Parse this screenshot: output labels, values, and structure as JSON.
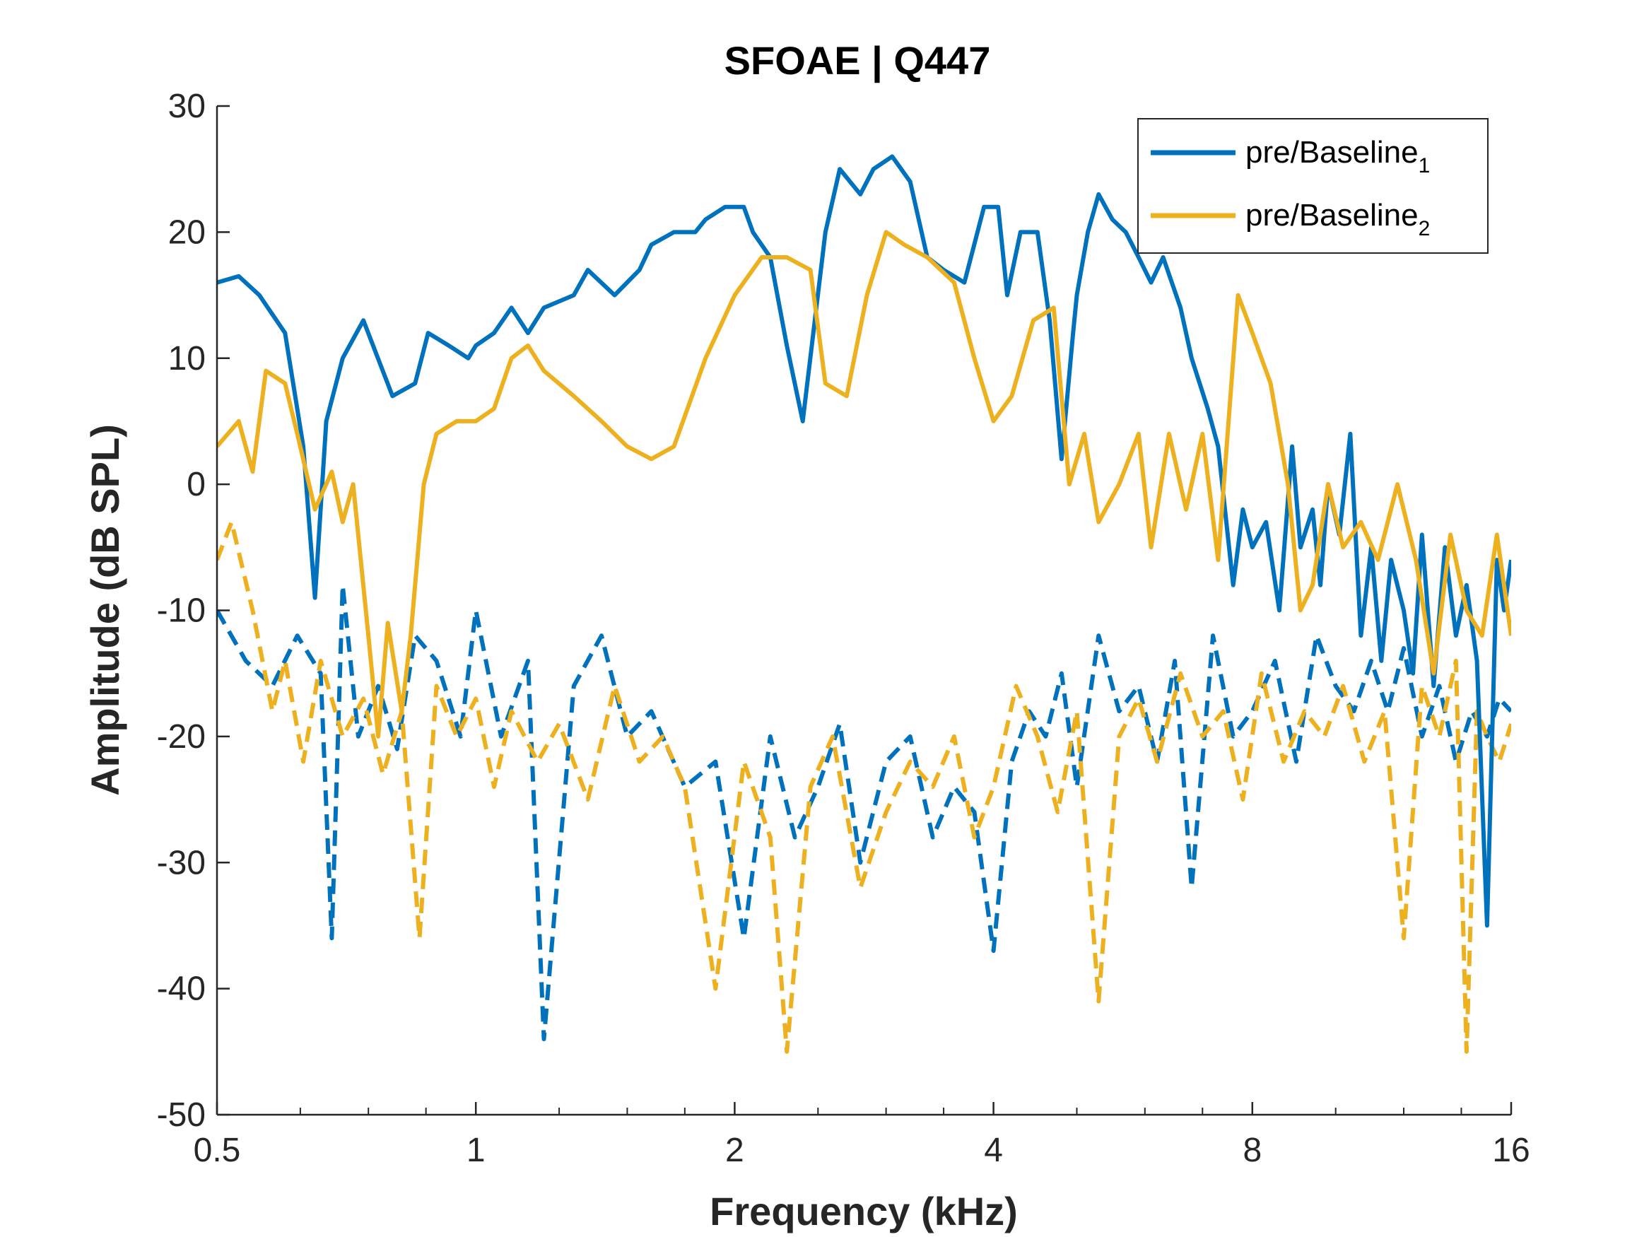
{
  "chart_data": {
    "type": "line",
    "title": "SFOAE | Q447",
    "xlabel": "Frequency (kHz)",
    "ylabel": "Amplitude (dB SPL)",
    "xscale": "log2",
    "xlim": [
      0.5,
      16
    ],
    "ylim": [
      -50,
      30
    ],
    "xticks": [
      0.5,
      1,
      2,
      4,
      8,
      16
    ],
    "xtick_labels": [
      "0.5",
      "1",
      "2",
      "4",
      "8",
      "16"
    ],
    "yticks": [
      -50,
      -40,
      -30,
      -20,
      -10,
      0,
      10,
      20,
      30
    ],
    "ytick_labels": [
      "-50",
      "-40",
      "-30",
      "-20",
      "-10",
      "0",
      "10",
      "20",
      "30"
    ],
    "grid": false,
    "legend": {
      "placement": "top-right",
      "entries": [
        {
          "main": "pre/Baseline",
          "sub": "1",
          "color": "#0072BD"
        },
        {
          "main": "pre/Baseline",
          "sub": "2",
          "color": "#EDB120"
        }
      ]
    },
    "colors": {
      "series1": "#0072BD",
      "series2": "#EDB120"
    },
    "series": [
      {
        "style": "solid",
        "color": "#0072BD",
        "x": [
          0.5,
          0.53,
          0.56,
          0.6,
          0.63,
          0.65,
          0.67,
          0.7,
          0.74,
          0.8,
          0.85,
          0.88,
          0.93,
          0.98,
          1.0,
          1.05,
          1.1,
          1.15,
          1.2,
          1.3,
          1.35,
          1.45,
          1.55,
          1.6,
          1.7,
          1.8,
          1.85,
          1.95,
          2.05,
          2.1,
          2.2,
          2.3,
          2.4,
          2.55,
          2.65,
          2.8,
          2.9,
          3.05,
          3.2,
          3.35,
          3.5,
          3.7,
          3.9,
          4.05,
          4.15,
          4.3,
          4.5,
          4.65,
          4.8,
          4.95,
          5.0,
          5.15,
          5.3,
          5.5,
          5.7,
          5.9,
          6.1,
          6.3,
          6.6,
          6.8,
          7.1,
          7.3,
          7.6,
          7.8,
          8.0,
          8.3,
          8.6,
          8.9,
          9.1,
          9.4,
          9.6,
          9.8,
          10.1,
          10.4,
          10.7,
          11.0,
          11.3,
          11.6,
          12.0,
          12.3,
          12.6,
          13.0,
          13.4,
          13.8,
          14.2,
          14.6,
          15.0,
          15.4,
          15.7,
          16.0
        ],
        "y": [
          16,
          16.5,
          15,
          12,
          3,
          -9,
          5,
          10,
          13,
          7,
          8,
          12,
          11,
          10,
          11,
          12,
          14,
          12,
          14,
          15,
          17,
          15,
          17,
          19,
          20,
          20,
          21,
          22,
          22,
          20,
          18,
          11,
          5,
          20,
          25,
          23,
          25,
          26,
          24,
          18,
          17,
          16,
          22,
          22,
          15,
          20,
          20,
          13,
          2,
          12,
          15,
          20,
          23,
          21,
          20,
          18,
          16,
          18,
          14,
          10,
          6,
          3,
          -8,
          -2,
          -5,
          -3,
          -10,
          3,
          -5,
          -2,
          -8,
          0,
          -4,
          4,
          -12,
          -5,
          -14,
          -6,
          -10,
          -15,
          -4,
          -16,
          -5,
          -12,
          -8,
          -14,
          -35,
          -6,
          -10,
          -6
        ]
      },
      {
        "style": "solid",
        "color": "#EDB120",
        "x": [
          0.5,
          0.53,
          0.55,
          0.57,
          0.6,
          0.62,
          0.65,
          0.68,
          0.7,
          0.72,
          0.75,
          0.77,
          0.79,
          0.82,
          0.84,
          0.87,
          0.9,
          0.95,
          1.0,
          1.05,
          1.1,
          1.15,
          1.2,
          1.3,
          1.4,
          1.5,
          1.6,
          1.7,
          1.85,
          2.0,
          2.15,
          2.3,
          2.45,
          2.55,
          2.7,
          2.85,
          3.0,
          3.15,
          3.35,
          3.6,
          3.8,
          4.0,
          4.2,
          4.45,
          4.7,
          4.9,
          5.1,
          5.3,
          5.6,
          5.9,
          6.1,
          6.4,
          6.7,
          7.0,
          7.3,
          7.7,
          8.0,
          8.4,
          8.8,
          9.1,
          9.4,
          9.8,
          10.2,
          10.7,
          11.2,
          11.8,
          12.4,
          13.0,
          13.6,
          14.2,
          14.8,
          15.4,
          16.0
        ],
        "y": [
          3,
          5,
          1,
          9,
          8,
          4,
          -2,
          1,
          -3,
          0,
          -12,
          -20,
          -11,
          -18,
          -12,
          0,
          4,
          5,
          5,
          6,
          10,
          11,
          9,
          7,
          5,
          3,
          2,
          3,
          10,
          15,
          18,
          18,
          17,
          8,
          7,
          15,
          20,
          19,
          18,
          16,
          10,
          5,
          7,
          13,
          14,
          0,
          4,
          -3,
          0,
          4,
          -5,
          4,
          -2,
          4,
          -6,
          15,
          12,
          8,
          0,
          -10,
          -8,
          0,
          -5,
          -3,
          -6,
          0,
          -6,
          -15,
          -4,
          -10,
          -12,
          -4,
          -12
        ]
      },
      {
        "style": "dashed",
        "color": "#0072BD",
        "x": [
          0.5,
          0.54,
          0.58,
          0.62,
          0.66,
          0.68,
          0.7,
          0.73,
          0.77,
          0.81,
          0.85,
          0.9,
          0.96,
          1.0,
          1.07,
          1.15,
          1.2,
          1.3,
          1.4,
          1.5,
          1.6,
          1.75,
          1.9,
          2.05,
          2.2,
          2.35,
          2.5,
          2.65,
          2.8,
          3.0,
          3.2,
          3.4,
          3.6,
          3.8,
          4.0,
          4.2,
          4.4,
          4.6,
          4.8,
          5.0,
          5.3,
          5.6,
          5.9,
          6.2,
          6.5,
          6.8,
          7.2,
          7.6,
          8.0,
          8.5,
          9.0,
          9.5,
          10.0,
          10.5,
          11.0,
          11.5,
          12.0,
          12.6,
          13.2,
          13.8,
          14.4,
          15.0,
          15.5,
          16.0
        ],
        "y": [
          -10,
          -14,
          -16,
          -12,
          -15,
          -36,
          -8,
          -20,
          -16,
          -21,
          -12,
          -14,
          -20,
          -10,
          -20,
          -14,
          -44,
          -16,
          -12,
          -20,
          -18,
          -24,
          -22,
          -36,
          -20,
          -28,
          -24,
          -19,
          -30,
          -22,
          -20,
          -28,
          -24,
          -26,
          -37,
          -22,
          -18,
          -20,
          -15,
          -24,
          -12,
          -18,
          -16,
          -22,
          -14,
          -32,
          -12,
          -20,
          -18,
          -14,
          -22,
          -12,
          -16,
          -18,
          -14,
          -18,
          -13,
          -20,
          -16,
          -22,
          -18,
          -20,
          -17,
          -18
        ]
      },
      {
        "style": "dashed",
        "color": "#EDB120",
        "x": [
          0.5,
          0.52,
          0.55,
          0.58,
          0.6,
          0.63,
          0.66,
          0.7,
          0.74,
          0.78,
          0.82,
          0.86,
          0.9,
          0.95,
          1.0,
          1.05,
          1.1,
          1.18,
          1.25,
          1.35,
          1.45,
          1.55,
          1.65,
          1.75,
          1.9,
          2.05,
          2.2,
          2.3,
          2.45,
          2.6,
          2.8,
          3.0,
          3.2,
          3.4,
          3.6,
          3.8,
          4.0,
          4.25,
          4.5,
          4.75,
          5.0,
          5.3,
          5.6,
          5.9,
          6.2,
          6.6,
          7.0,
          7.4,
          7.8,
          8.2,
          8.7,
          9.2,
          9.7,
          10.2,
          10.8,
          11.4,
          12.0,
          12.6,
          13.2,
          13.8,
          14.2,
          14.6,
          15.0,
          15.5,
          16.0
        ],
        "y": [
          -6,
          -3,
          -10,
          -18,
          -14,
          -22,
          -14,
          -20,
          -17,
          -23,
          -18,
          -36,
          -16,
          -20,
          -17,
          -24,
          -18,
          -22,
          -19,
          -25,
          -16,
          -22,
          -20,
          -24,
          -40,
          -22,
          -28,
          -45,
          -24,
          -20,
          -32,
          -26,
          -22,
          -24,
          -20,
          -28,
          -24,
          -16,
          -20,
          -26,
          -18,
          -41,
          -20,
          -17,
          -22,
          -15,
          -20,
          -18,
          -25,
          -15,
          -22,
          -18,
          -20,
          -16,
          -22,
          -18,
          -36,
          -16,
          -20,
          -14,
          -45,
          -18,
          -20,
          -22,
          -19
        ]
      }
    ]
  }
}
